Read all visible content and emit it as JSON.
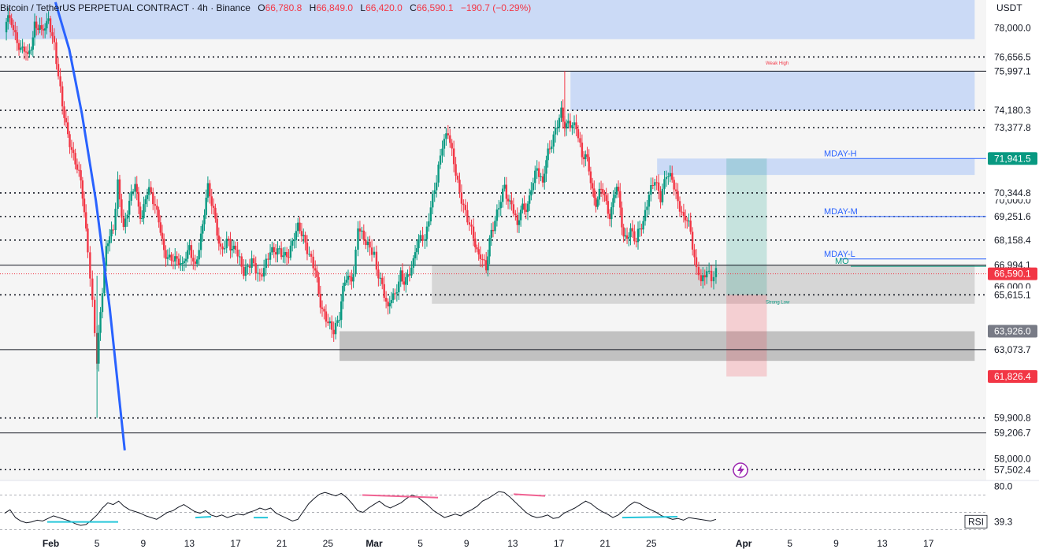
{
  "header": {
    "symbol": "Bitcoin / TetherUS PERPETUAL CONTRACT · 4h · Binance",
    "o_label": "O",
    "o_value": "66,780.8",
    "h_label": "H",
    "h_value": "66,849.0",
    "l_label": "L",
    "l_value": "66,420.0",
    "c_label": "C",
    "c_value": "66,590.1",
    "change": "−190.7 (−0.29%)"
  },
  "price_axis": {
    "unit": "USDT"
  },
  "colors": {
    "up": "#089981",
    "down": "#f23645",
    "supply_zone": "#bcd0f5",
    "demand_zone": "#9e9e9e",
    "trend_line": "#2962ff",
    "rsi": "#131722",
    "divergence_bear": "#f06292",
    "divergence_bull": "#26c6da",
    "mday": "#2962ff",
    "mo": "#089981"
  },
  "chart_data": {
    "type": "candlestick",
    "title": "Bitcoin / TetherUS PERPETUAL CONTRACT · 4h · Binance",
    "ylim": [
      57000,
      79300
    ],
    "y_ticks": [
      "78,000.0",
      "70,000.0",
      "66,000.0",
      "58,000.0"
    ],
    "x_ticks": [
      "Feb",
      "5",
      "9",
      "13",
      "17",
      "21",
      "25",
      "Mar",
      "5",
      "9",
      "13",
      "17",
      "21",
      "25",
      "Apr",
      "5",
      "9",
      "13",
      "17"
    ],
    "x_tick_days": [
      32,
      36,
      40,
      44,
      48,
      52,
      56,
      60,
      64,
      68,
      72,
      76,
      80,
      84,
      92,
      96,
      100,
      104,
      108
    ],
    "x_days_range": [
      27.6,
      113
    ],
    "last_candle_day": 89.6,
    "dotted_levels": [
      {
        "value": 76656.5,
        "label": "76,656.5"
      },
      {
        "value": 74180.3,
        "label": "74,180.3"
      },
      {
        "value": 73377.8,
        "label": "73,377.8"
      },
      {
        "value": 70344.8,
        "label": "70,344.8"
      },
      {
        "value": 69251.6,
        "label": "69,251.6"
      },
      {
        "value": 68158.4,
        "label": "68,158.4"
      },
      {
        "value": 65615.1,
        "label": "65,615.1"
      },
      {
        "value": 59900.8,
        "label": "59,900.8"
      },
      {
        "value": 57502.4,
        "label": "57,502.4"
      }
    ],
    "solid_levels": [
      {
        "value": 75997.1,
        "label": "75,997.1"
      },
      {
        "value": 66994.1,
        "label": "66,994.1"
      },
      {
        "value": 63073.7,
        "label": "63,073.7"
      },
      {
        "value": 59206.7,
        "label": "59,206.7"
      }
    ],
    "current_price": {
      "value": 66590.1,
      "label": "66,590.1"
    },
    "highlight_labels": [
      {
        "value": 71941.5,
        "label": "71,941.5",
        "color": "#089981"
      },
      {
        "value": 63926.0,
        "label": "63,926.0",
        "color": "#787b86"
      },
      {
        "value": 61826.4,
        "label": "61,826.4",
        "color": "#f23645"
      }
    ],
    "zone_labels": [
      "MDAY-H",
      "MDAY-M",
      "MDAY-L",
      "MO",
      "Weak High",
      "Strong Low"
    ],
    "zone_levels": {
      "mday_h": 71941.5,
      "mday_m": 69251.6,
      "mday_l": 67280,
      "mo": 66940
    },
    "zones": [
      {
        "kind": "supply",
        "from_day": 27.6,
        "to_day": 112,
        "low": 77480,
        "high": 79300
      },
      {
        "kind": "supply",
        "from_day": 77,
        "to_day": 112,
        "low": 74180,
        "high": 76000
      },
      {
        "kind": "supply",
        "from_day": 84.5,
        "to_day": 112,
        "low": 71180,
        "high": 71941
      },
      {
        "kind": "demand",
        "from_day": 65,
        "to_day": 112,
        "low": 65200,
        "high": 66994
      },
      {
        "kind": "demand",
        "from_day": 57,
        "to_day": 112,
        "low": 62550,
        "high": 63926
      }
    ],
    "position": {
      "entry": 65615.1,
      "target": 71941.5,
      "stop": 61826.4,
      "from_day": 90.5,
      "to_day": 94
    },
    "trend_line": [
      [
        32.4,
        79200
      ],
      [
        33.6,
        77000
      ],
      [
        34.7,
        74000
      ],
      [
        35.9,
        70000
      ],
      [
        37.1,
        65000
      ],
      [
        38.4,
        58400
      ]
    ],
    "candle_path": [
      [
        28.0,
        77800
      ],
      [
        28.6,
        78600
      ],
      [
        29.4,
        77200
      ],
      [
        30.0,
        76300
      ],
      [
        30.6,
        78500
      ],
      [
        31.2,
        77400
      ],
      [
        31.8,
        78800
      ],
      [
        32.3,
        77600
      ],
      [
        33.0,
        74800
      ],
      [
        33.8,
        72500
      ],
      [
        34.6,
        70500
      ],
      [
        35.2,
        68000
      ],
      [
        35.6,
        64800
      ],
      [
        36.0,
        62600
      ],
      [
        36.3,
        64500
      ],
      [
        36.8,
        67400
      ],
      [
        37.4,
        69000
      ],
      [
        37.8,
        70400
      ],
      [
        38.3,
        68300
      ],
      [
        38.8,
        69700
      ],
      [
        39.3,
        70700
      ],
      [
        39.9,
        69400
      ],
      [
        40.5,
        70200
      ],
      [
        41.2,
        69000
      ],
      [
        41.8,
        68000
      ],
      [
        42.6,
        67400
      ],
      [
        43.4,
        66500
      ],
      [
        44.0,
        68200
      ],
      [
        44.5,
        67300
      ],
      [
        45.0,
        68700
      ],
      [
        45.6,
        70200
      ],
      [
        46.1,
        69100
      ],
      [
        46.7,
        68100
      ],
      [
        47.4,
        68500
      ],
      [
        48.0,
        67600
      ],
      [
        48.7,
        66800
      ],
      [
        49.4,
        67600
      ],
      [
        50.1,
        66800
      ],
      [
        51.0,
        67300
      ],
      [
        51.8,
        68000
      ],
      [
        52.6,
        67700
      ],
      [
        53.4,
        68400
      ],
      [
        54.2,
        67600
      ],
      [
        54.9,
        66400
      ],
      [
        55.5,
        65300
      ],
      [
        56.0,
        64700
      ],
      [
        56.5,
        64200
      ],
      [
        57.0,
        64800
      ],
      [
        57.6,
        66200
      ],
      [
        58.2,
        67000
      ],
      [
        58.6,
        68800
      ],
      [
        59.1,
        68300
      ],
      [
        59.8,
        67400
      ],
      [
        60.2,
        66700
      ],
      [
        60.7,
        65800
      ],
      [
        61.2,
        64600
      ],
      [
        61.8,
        65800
      ],
      [
        62.3,
        66900
      ],
      [
        62.9,
        66200
      ],
      [
        63.4,
        66800
      ],
      [
        64.0,
        68500
      ],
      [
        64.4,
        67700
      ],
      [
        64.9,
        69300
      ],
      [
        65.4,
        70600
      ],
      [
        65.9,
        72300
      ],
      [
        66.4,
        73000
      ],
      [
        66.9,
        71700
      ],
      [
        67.4,
        70400
      ],
      [
        67.9,
        69600
      ],
      [
        68.6,
        68200
      ],
      [
        69.2,
        67700
      ],
      [
        69.7,
        67000
      ],
      [
        70.3,
        68500
      ],
      [
        70.8,
        69600
      ],
      [
        71.3,
        70700
      ],
      [
        71.9,
        70000
      ],
      [
        72.4,
        68800
      ],
      [
        73.0,
        69500
      ],
      [
        73.6,
        70800
      ],
      [
        74.1,
        71600
      ],
      [
        74.6,
        70700
      ],
      [
        75.2,
        72300
      ],
      [
        75.7,
        73300
      ],
      [
        76.2,
        74300
      ],
      [
        76.8,
        73500
      ],
      [
        77.5,
        73700
      ],
      [
        78.0,
        72200
      ],
      [
        78.6,
        71200
      ],
      [
        79.2,
        70200
      ],
      [
        79.8,
        70100
      ],
      [
        80.4,
        69700
      ],
      [
        81.0,
        70300
      ],
      [
        81.6,
        68700
      ],
      [
        82.2,
        68300
      ],
      [
        82.7,
        67700
      ],
      [
        83.3,
        69300
      ],
      [
        83.8,
        70700
      ],
      [
        84.3,
        71400
      ],
      [
        84.8,
        70500
      ],
      [
        85.3,
        71600
      ],
      [
        85.8,
        71300
      ],
      [
        86.3,
        70100
      ],
      [
        86.8,
        69200
      ],
      [
        87.4,
        68300
      ],
      [
        87.9,
        66700
      ],
      [
        88.3,
        65900
      ],
      [
        88.8,
        66400
      ],
      [
        89.2,
        66800
      ],
      [
        89.6,
        66600
      ]
    ],
    "rsi": {
      "label": "RSI",
      "value": "39.3",
      "ylim": [
        25,
        85
      ],
      "levels": [
        70,
        50,
        30
      ],
      "tick_label": "80.0",
      "tick_value": 80,
      "values": [
        49,
        53,
        44,
        40,
        38,
        39,
        41,
        40,
        43,
        46,
        44,
        42,
        40,
        37,
        35,
        36,
        41,
        47,
        55,
        61,
        59,
        63,
        57,
        53,
        51,
        49,
        46,
        44,
        42,
        46,
        50,
        52,
        56,
        59,
        55,
        51,
        49,
        52,
        47,
        45,
        47,
        44,
        46,
        48,
        47,
        50,
        52,
        55,
        53,
        55,
        49,
        46,
        43,
        40,
        42,
        51,
        60,
        66,
        71,
        73,
        71,
        69,
        72,
        67,
        60,
        52,
        50,
        55,
        59,
        63,
        58,
        55,
        58,
        61,
        66,
        70,
        68,
        63,
        58,
        52,
        48,
        44,
        46,
        48,
        46,
        50,
        53,
        57,
        63,
        66,
        70,
        74,
        73,
        68,
        62,
        56,
        50,
        46,
        44,
        45,
        47,
        43,
        44,
        49,
        52,
        55,
        59,
        63,
        60,
        55,
        51,
        48,
        44,
        47,
        52,
        58,
        62,
        60,
        56,
        53,
        50,
        46,
        44,
        42,
        43,
        41,
        44,
        43,
        42,
        41,
        40,
        42
      ]
    }
  }
}
